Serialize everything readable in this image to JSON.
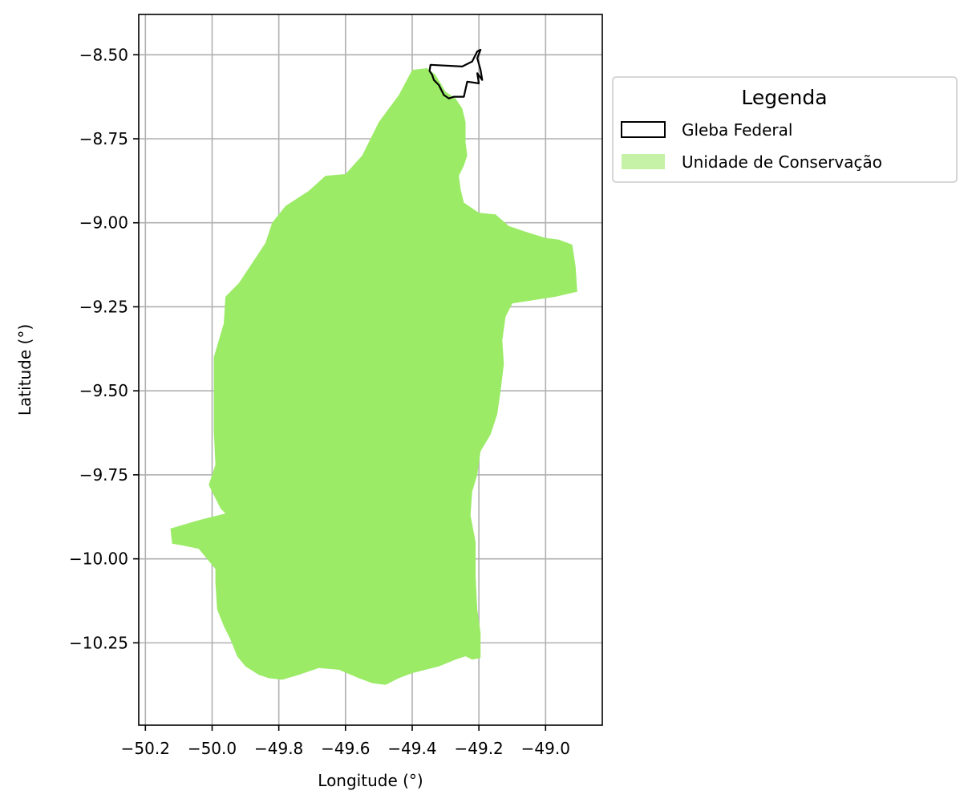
{
  "chart_data": {
    "type": "map",
    "xlabel": "Longitude (°)",
    "ylabel": "Latitude (°)",
    "xlim": [
      -50.22,
      -48.83
    ],
    "ylim": [
      -10.495,
      -8.38
    ],
    "grid": true,
    "x_ticks": [
      {
        "value": -50.2,
        "label": "−50.2"
      },
      {
        "value": -50.0,
        "label": "−50.0"
      },
      {
        "value": -49.8,
        "label": "−49.8"
      },
      {
        "value": -49.6,
        "label": "−49.6"
      },
      {
        "value": -49.4,
        "label": "−49.4"
      },
      {
        "value": -49.2,
        "label": "−49.2"
      },
      {
        "value": -49.0,
        "label": "−49.0"
      }
    ],
    "y_ticks": [
      {
        "value": -8.5,
        "label": "−8.50"
      },
      {
        "value": -8.75,
        "label": "−8.75"
      },
      {
        "value": -9.0,
        "label": "−9.00"
      },
      {
        "value": -9.25,
        "label": "−9.25"
      },
      {
        "value": -9.5,
        "label": "−9.50"
      },
      {
        "value": -9.75,
        "label": "−9.75"
      },
      {
        "value": -10.0,
        "label": "−10.00"
      },
      {
        "value": -10.25,
        "label": "−10.25"
      }
    ],
    "legend": {
      "title": "Legenda",
      "placement": "outside-upper-right",
      "entries": [
        {
          "label": "Gleba Federal",
          "style": "outline",
          "color": "#000000"
        },
        {
          "label": "Unidade de Conservação",
          "style": "fill",
          "color": "#c5f2a6"
        }
      ]
    },
    "layers": [
      {
        "name": "Unidade de Conservação",
        "fill": "#9beb67",
        "outline": [
          [
            -49.4,
            -8.545
          ],
          [
            -49.355,
            -8.54
          ],
          [
            -49.33,
            -8.56
          ],
          [
            -49.3,
            -8.61
          ],
          [
            -49.27,
            -8.63
          ],
          [
            -49.25,
            -8.66
          ],
          [
            -49.24,
            -8.7
          ],
          [
            -49.24,
            -8.76
          ],
          [
            -49.235,
            -8.8
          ],
          [
            -49.245,
            -8.83
          ],
          [
            -49.26,
            -8.86
          ],
          [
            -49.255,
            -8.9
          ],
          [
            -49.245,
            -8.94
          ],
          [
            -49.2,
            -8.97
          ],
          [
            -49.15,
            -8.975
          ],
          [
            -49.11,
            -9.01
          ],
          [
            -49.05,
            -9.03
          ],
          [
            -49.0,
            -9.045
          ],
          [
            -48.96,
            -9.05
          ],
          [
            -48.92,
            -9.065
          ],
          [
            -48.91,
            -9.13
          ],
          [
            -48.905,
            -9.205
          ],
          [
            -48.97,
            -9.22
          ],
          [
            -49.1,
            -9.24
          ],
          [
            -49.12,
            -9.28
          ],
          [
            -49.13,
            -9.35
          ],
          [
            -49.125,
            -9.42
          ],
          [
            -49.135,
            -9.5
          ],
          [
            -49.145,
            -9.57
          ],
          [
            -49.165,
            -9.63
          ],
          [
            -49.195,
            -9.68
          ],
          [
            -49.205,
            -9.75
          ],
          [
            -49.22,
            -9.8
          ],
          [
            -49.225,
            -9.87
          ],
          [
            -49.21,
            -9.95
          ],
          [
            -49.21,
            -10.05
          ],
          [
            -49.205,
            -10.15
          ],
          [
            -49.195,
            -10.22
          ],
          [
            -49.195,
            -10.295
          ],
          [
            -49.22,
            -10.3
          ],
          [
            -49.24,
            -10.29
          ],
          [
            -49.27,
            -10.3
          ],
          [
            -49.32,
            -10.32
          ],
          [
            -49.36,
            -10.33
          ],
          [
            -49.4,
            -10.34
          ],
          [
            -49.44,
            -10.355
          ],
          [
            -49.48,
            -10.375
          ],
          [
            -49.52,
            -10.37
          ],
          [
            -49.56,
            -10.355
          ],
          [
            -49.62,
            -10.33
          ],
          [
            -49.68,
            -10.325
          ],
          [
            -49.74,
            -10.345
          ],
          [
            -49.79,
            -10.36
          ],
          [
            -49.83,
            -10.355
          ],
          [
            -49.86,
            -10.345
          ],
          [
            -49.9,
            -10.32
          ],
          [
            -49.925,
            -10.29
          ],
          [
            -49.945,
            -10.24
          ],
          [
            -49.965,
            -10.2
          ],
          [
            -49.985,
            -10.15
          ],
          [
            -49.99,
            -10.07
          ],
          [
            -49.99,
            -10.03
          ],
          [
            -50.04,
            -9.97
          ],
          [
            -50.09,
            -9.96
          ],
          [
            -50.12,
            -9.955
          ],
          [
            -50.125,
            -9.91
          ],
          [
            -50.04,
            -9.885
          ],
          [
            -49.96,
            -9.865
          ],
          [
            -49.975,
            -9.85
          ],
          [
            -50.01,
            -9.78
          ],
          [
            -49.99,
            -9.72
          ],
          [
            -49.995,
            -9.62
          ],
          [
            -49.995,
            -9.5
          ],
          [
            -49.995,
            -9.4
          ],
          [
            -49.965,
            -9.3
          ],
          [
            -49.96,
            -9.22
          ],
          [
            -49.92,
            -9.18
          ],
          [
            -49.88,
            -9.12
          ],
          [
            -49.84,
            -9.06
          ],
          [
            -49.82,
            -9.0
          ],
          [
            -49.78,
            -8.95
          ],
          [
            -49.71,
            -8.905
          ],
          [
            -49.66,
            -8.86
          ],
          [
            -49.6,
            -8.855
          ],
          [
            -49.55,
            -8.8
          ],
          [
            -49.5,
            -8.7
          ],
          [
            -49.44,
            -8.62
          ],
          [
            -49.4,
            -8.545
          ]
        ]
      },
      {
        "name": "Gleba Federal",
        "fill": "none",
        "stroke": "#000000",
        "outline": [
          [
            -49.345,
            -8.53
          ],
          [
            -49.25,
            -8.535
          ],
          [
            -49.22,
            -8.52
          ],
          [
            -49.205,
            -8.49
          ],
          [
            -49.195,
            -8.485
          ],
          [
            -49.205,
            -8.51
          ],
          [
            -49.195,
            -8.545
          ],
          [
            -49.19,
            -8.575
          ],
          [
            -49.205,
            -8.555
          ],
          [
            -49.2,
            -8.585
          ],
          [
            -49.235,
            -8.58
          ],
          [
            -49.245,
            -8.625
          ],
          [
            -49.275,
            -8.625
          ],
          [
            -49.29,
            -8.63
          ],
          [
            -49.305,
            -8.62
          ],
          [
            -49.32,
            -8.59
          ],
          [
            -49.335,
            -8.575
          ],
          [
            -49.34,
            -8.56
          ],
          [
            -49.348,
            -8.548
          ],
          [
            -49.345,
            -8.53
          ]
        ]
      }
    ]
  }
}
